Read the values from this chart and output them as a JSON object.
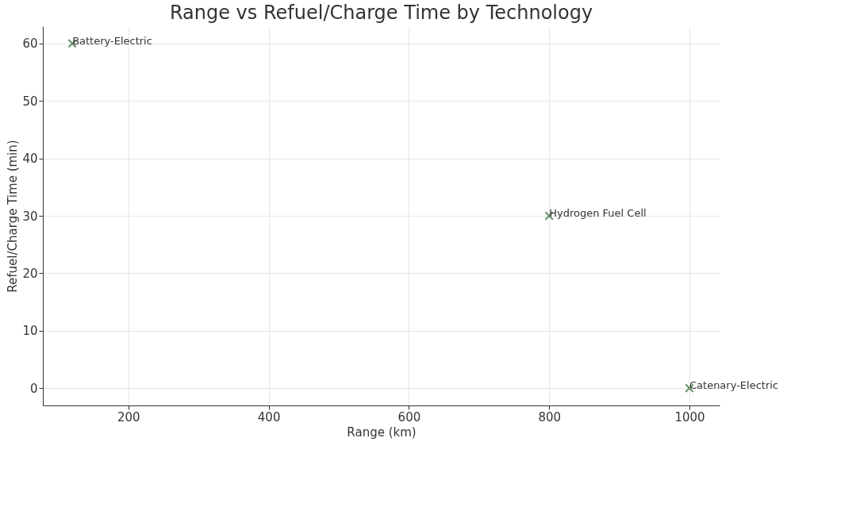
{
  "chart_data": {
    "type": "scatter",
    "title": "Range vs Refuel/Charge Time by Technology",
    "xlabel": "Range (km)",
    "ylabel": "Refuel/Charge Time (min)",
    "x": [
      120,
      800,
      1000
    ],
    "series": [
      {
        "color": "#2e6b30",
        "values": [
          60,
          30,
          0
        ]
      }
    ],
    "marker": "cross",
    "grid": true,
    "xlim": [
      78,
      1043
    ],
    "xticks": [
      200,
      400,
      600,
      800,
      1000
    ],
    "ylim": [
      -3,
      63
    ],
    "yticks": [
      0,
      10,
      20,
      30,
      40,
      50,
      60
    ],
    "annotations": [
      {
        "text": "Battery-Electric",
        "x": 120,
        "y": 60
      },
      {
        "text": "Hydrogen Fuel Cell",
        "x": 800,
        "y": 30
      },
      {
        "text": "Catenary-Electric",
        "x": 1000,
        "y": 0
      }
    ]
  }
}
